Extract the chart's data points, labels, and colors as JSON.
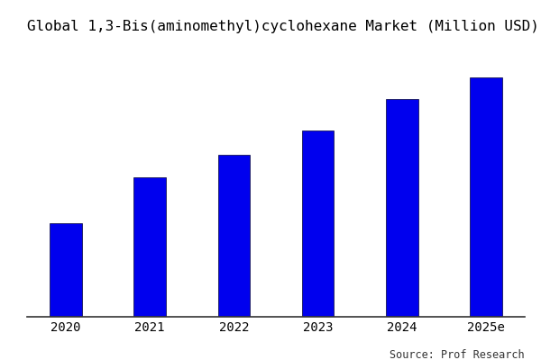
{
  "title": "Global 1,3-Bis(aminomethyl)cyclohexane Market (Million USD)",
  "categories": [
    "2020",
    "2021",
    "2022",
    "2023",
    "2024",
    "2025e"
  ],
  "values": [
    30,
    45,
    52,
    60,
    70,
    77
  ],
  "bar_color": "#0000EE",
  "background_color": "#ffffff",
  "source_text": "Source: Prof Research",
  "title_fontsize": 11.5,
  "tick_fontsize": 10,
  "source_fontsize": 8.5,
  "bar_width": 0.38,
  "ylim": [
    0,
    88
  ]
}
